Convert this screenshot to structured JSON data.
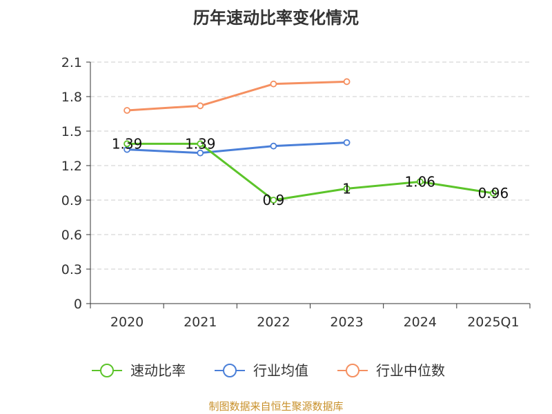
{
  "chart_data": {
    "type": "line",
    "title": "历年速动比率变化情况",
    "categories": [
      "2020",
      "2021",
      "2022",
      "2023",
      "2024",
      "2025Q1"
    ],
    "ylim": [
      0,
      2.1
    ],
    "yticks": [
      "0",
      "0.3",
      "0.6",
      "0.9",
      "1.2",
      "1.5",
      "1.8",
      "2.1"
    ],
    "grid": true,
    "legend_position": "bottom",
    "series": [
      {
        "name": "速动比率",
        "color": "#5cc42a",
        "values": [
          1.39,
          1.39,
          0.9,
          1,
          1.06,
          0.96
        ],
        "labels": [
          "1.39",
          "1.39",
          "0.9",
          "1",
          "1.06",
          "0.96"
        ]
      },
      {
        "name": "行业均值",
        "color": "#4a7fd8",
        "values": [
          1.34,
          1.31,
          1.37,
          1.4,
          null,
          null
        ]
      },
      {
        "name": "行业中位数",
        "color": "#f59061",
        "values": [
          1.68,
          1.72,
          1.91,
          1.93,
          null,
          null
        ]
      }
    ]
  },
  "source_note": "制图数据来自恒生聚源数据库"
}
